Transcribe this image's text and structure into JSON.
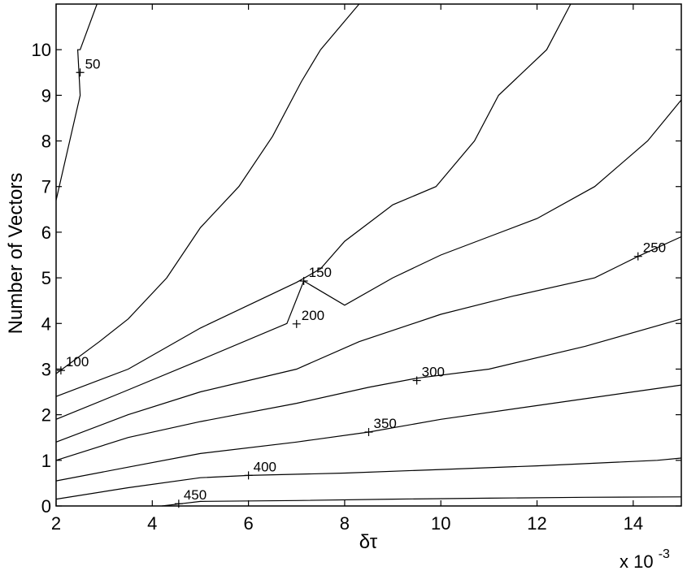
{
  "chart_data": {
    "type": "line",
    "subtype": "contour",
    "xlabel": "δτ",
    "ylabel": "Number of Vectors",
    "x_multiplier": "x 10",
    "x_multiplier_exponent": "-3",
    "xlim": [
      2,
      15
    ],
    "ylim": [
      0,
      11
    ],
    "x_ticks": [
      2,
      4,
      6,
      8,
      10,
      12,
      14
    ],
    "y_ticks": [
      0,
      1,
      2,
      3,
      4,
      5,
      6,
      7,
      8,
      9,
      10
    ],
    "grid": false,
    "series": [
      {
        "level": "50",
        "x": [
          2.0,
          2.5,
          2.45,
          2.5,
          2.85
        ],
        "y": [
          6.7,
          9.0,
          10.0,
          10.0,
          11.0
        ],
        "label_at": [
          2.5,
          9.5
        ]
      },
      {
        "level": "",
        "x": [
          2.0,
          2.9,
          3.5,
          4.3,
          5.0,
          5.8,
          6.5,
          7.1,
          7.5,
          8.3
        ],
        "y": [
          2.9,
          3.6,
          4.1,
          5.0,
          6.1,
          7.0,
          8.1,
          9.3,
          10.0,
          11.0
        ]
      },
      {
        "level": "100",
        "x": [
          2.0,
          3.5,
          5.0,
          6.0,
          7.0,
          7.5,
          8.0,
          9.0,
          9.9,
          10.7,
          11.2,
          12.2,
          12.7
        ],
        "y": [
          2.4,
          3.0,
          3.9,
          4.4,
          4.9,
          5.2,
          5.8,
          6.6,
          7.0,
          8.0,
          9.0,
          10.0,
          11.0
        ],
        "label_at": [
          2.1,
          2.97
        ]
      },
      {
        "level": "150",
        "x": [
          2.0,
          3.4,
          5.0,
          6.8,
          7.15,
          8.0,
          9.0,
          10.0,
          11.0,
          12.0,
          13.2,
          14.3,
          15.0
        ],
        "y": [
          1.9,
          2.5,
          3.2,
          4.0,
          4.93,
          4.4,
          5.0,
          5.5,
          5.9,
          6.3,
          7.0,
          8.0,
          8.9
        ],
        "label_at": [
          7.15,
          4.93
        ]
      },
      {
        "level": "200",
        "x": [
          2.0,
          3.5,
          5.0,
          7.0,
          8.3,
          10.0,
          11.5,
          13.2,
          14.1,
          15.0
        ],
        "y": [
          1.4,
          2.0,
          2.5,
          3.0,
          3.6,
          4.2,
          4.6,
          5.0,
          5.47,
          5.9
        ],
        "label_at": [
          7.0,
          3.99
        ]
      },
      {
        "level": "250",
        "x": [
          2.0,
          3.5,
          5.0,
          7.0,
          8.5,
          9.5,
          11.0,
          13.0,
          15.0
        ],
        "y": [
          1.0,
          1.5,
          1.85,
          2.25,
          2.6,
          2.8,
          3.0,
          3.5,
          4.1
        ],
        "label_at": [
          14.1,
          5.47
        ]
      },
      {
        "level": "300",
        "x": [
          2.0,
          3.5,
          5.0,
          7.0,
          8.5,
          10.0,
          12.0,
          14.0,
          15.0
        ],
        "y": [
          0.55,
          0.85,
          1.15,
          1.4,
          1.62,
          1.9,
          2.2,
          2.5,
          2.65
        ],
        "label_at": [
          9.5,
          2.75
        ]
      },
      {
        "level": "350",
        "x": [
          2.0,
          3.5,
          5.0,
          6.0,
          8.0,
          10.0,
          12.0,
          14.5,
          15.0
        ],
        "y": [
          0.15,
          0.4,
          0.62,
          0.67,
          0.72,
          0.8,
          0.88,
          1.0,
          1.05
        ],
        "label_at": [
          8.5,
          1.62
        ]
      },
      {
        "level": "400",
        "x": [
          4.2,
          4.6,
          5.0,
          7.0,
          9.0,
          11.0,
          13.0,
          15.0
        ],
        "y": [
          0.0,
          0.05,
          0.1,
          0.12,
          0.15,
          0.17,
          0.19,
          0.2
        ],
        "label_at": [
          6.0,
          0.67
        ]
      },
      {
        "level": "450",
        "x": [],
        "y": [],
        "label_at": [
          4.55,
          0.05
        ]
      }
    ]
  }
}
